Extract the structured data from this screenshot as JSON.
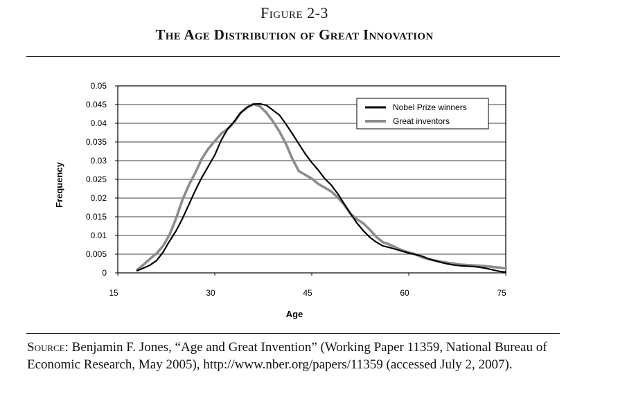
{
  "figure": {
    "number": "Figure 2-3",
    "title": "The Age Distribution of Great Innovation"
  },
  "source": {
    "label": "Source:",
    "text": "Benjamin F. Jones, “Age and Great Invention” (Working Paper 11359, National Bureau of Economic Research, May 2005), http://www.nber.org/papers/11359 (accessed July 2, 2007)."
  },
  "chart_data": {
    "type": "line",
    "title": "",
    "xlabel": "Age",
    "ylabel": "Frequency",
    "xlim": [
      15,
      75
    ],
    "ylim": [
      0,
      0.05
    ],
    "x_ticks": [
      15,
      30,
      45,
      60,
      75
    ],
    "y_ticks": [
      0,
      0.005,
      0.01,
      0.015,
      0.02,
      0.025,
      0.03,
      0.035,
      0.04,
      0.045,
      0.05
    ],
    "y_tick_labels": [
      "0",
      "0.005",
      "0.01",
      "0.015",
      "0.02",
      "0.025",
      "0.03",
      "0.035",
      "0.04",
      "0.045",
      "0.05"
    ],
    "grid": "horizontal",
    "legend_position": "top-right",
    "series": [
      {
        "name": "Nobel Prize winners",
        "color": "#000000",
        "x": [
          18,
          19,
          20,
          21,
          22,
          23,
          24,
          25,
          26,
          27,
          28,
          29,
          30,
          31,
          32,
          33,
          34,
          35,
          36,
          37,
          38,
          39,
          40,
          41,
          42,
          43,
          44,
          45,
          46,
          47,
          48,
          49,
          50,
          51,
          52,
          53,
          54,
          55,
          56,
          57,
          58,
          59,
          60,
          61,
          62,
          63,
          64,
          65,
          66,
          67,
          68,
          69,
          70,
          71,
          72,
          73,
          74,
          75
        ],
        "values": [
          0.0006,
          0.0013,
          0.0021,
          0.0033,
          0.0055,
          0.0085,
          0.0112,
          0.0145,
          0.0183,
          0.0221,
          0.0255,
          0.0285,
          0.0315,
          0.0355,
          0.0385,
          0.0405,
          0.0428,
          0.0443,
          0.0451,
          0.0452,
          0.0448,
          0.0435,
          0.0422,
          0.0398,
          0.0372,
          0.0345,
          0.0318,
          0.0295,
          0.0275,
          0.0252,
          0.0235,
          0.0212,
          0.0185,
          0.0158,
          0.0133,
          0.0112,
          0.0095,
          0.0082,
          0.0072,
          0.0068,
          0.0063,
          0.0058,
          0.0053,
          0.0049,
          0.0045,
          0.0038,
          0.0033,
          0.0028,
          0.0024,
          0.0021,
          0.0019,
          0.0018,
          0.0017,
          0.0015,
          0.0012,
          0.0008,
          0.0004,
          0.0002
        ]
      },
      {
        "name": "Great inventors",
        "color": "#8c8c8c",
        "x": [
          18,
          19,
          20,
          21,
          22,
          23,
          24,
          25,
          26,
          27,
          28,
          29,
          30,
          31,
          32,
          33,
          34,
          35,
          36,
          37,
          38,
          39,
          40,
          41,
          42,
          43,
          44,
          45,
          46,
          47,
          48,
          49,
          50,
          51,
          52,
          53,
          54,
          55,
          56,
          57,
          58,
          59,
          60,
          61,
          62,
          63,
          64,
          65,
          66,
          67,
          68,
          69,
          70,
          71,
          72,
          73,
          74,
          75
        ],
        "values": [
          0.0008,
          0.0022,
          0.0038,
          0.0052,
          0.0072,
          0.0102,
          0.0145,
          0.0195,
          0.0235,
          0.0268,
          0.0305,
          0.0332,
          0.0352,
          0.0372,
          0.0385,
          0.0402,
          0.0428,
          0.0442,
          0.0452,
          0.0445,
          0.0428,
          0.0405,
          0.0378,
          0.0345,
          0.0305,
          0.0272,
          0.0262,
          0.0252,
          0.0238,
          0.0228,
          0.0218,
          0.0202,
          0.0182,
          0.0158,
          0.0143,
          0.0132,
          0.0115,
          0.0096,
          0.0082,
          0.0076,
          0.0068,
          0.006,
          0.0055,
          0.005,
          0.0042,
          0.0037,
          0.0033,
          0.003,
          0.0027,
          0.0025,
          0.0022,
          0.0021,
          0.002,
          0.0019,
          0.0018,
          0.0016,
          0.0014,
          0.0012
        ]
      }
    ]
  }
}
